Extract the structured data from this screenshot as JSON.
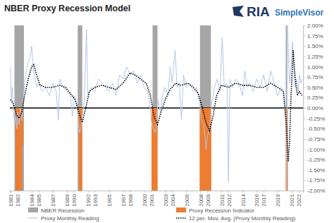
{
  "chart_data": {
    "type": "line",
    "title": "NBER Proxy Recession Model",
    "annotations": [
      "RIA",
      "SimpleVisor"
    ],
    "xlim": [
      1980.9,
      2022.6
    ],
    "xticks": [
      1981,
      1982,
      1984,
      1985,
      1987,
      1989,
      1990,
      1992,
      1993,
      1995,
      1997,
      1998,
      2000,
      2001,
      2003,
      2004,
      2006,
      2008,
      2009,
      2011,
      2012,
      2014,
      2016,
      2017,
      2019,
      2021,
      2022
    ],
    "ylim": [
      -2,
      2
    ],
    "yticks": [
      {
        "value": -2,
        "label": "-2.00%"
      },
      {
        "value": -1.75,
        "label": "-1.75%"
      },
      {
        "value": -1.5,
        "label": "-1.50%"
      },
      {
        "value": -1.25,
        "label": "-1.25%"
      },
      {
        "value": -1,
        "label": "-1.00%"
      },
      {
        "value": -0.75,
        "label": "-0.75%"
      },
      {
        "value": -0.5,
        "label": "-0.50%"
      },
      {
        "value": -0.25,
        "label": "-0.25%"
      },
      {
        "value": 0,
        "label": "0.00%"
      },
      {
        "value": 0.25,
        "label": "0.25%"
      },
      {
        "value": 0.5,
        "label": "0.50%"
      },
      {
        "value": 0.75,
        "label": "0.75%"
      },
      {
        "value": 1,
        "label": "1.00%"
      },
      {
        "value": 1.25,
        "label": "1.25%"
      },
      {
        "value": 1.5,
        "label": "1.50%"
      },
      {
        "value": 1.75,
        "label": "1.75%"
      },
      {
        "value": 2,
        "label": "2.00%"
      }
    ],
    "grid": false,
    "legend": "bottom",
    "series": [
      {
        "name": "NBER Recession",
        "type": "span",
        "color": "#a6a6a6",
        "start": [
          1981.55,
          1990.55,
          2001.2,
          2007.95,
          2020.15
        ],
        "end": [
          1982.9,
          1991.2,
          2001.9,
          2009.5,
          2020.35
        ]
      },
      {
        "name": "Proxy Recession Indicator",
        "type": "bar",
        "color": "#ed7d31",
        "x": [
          1981.85,
          1982.05,
          1982.2,
          1982.5,
          1982.65,
          1990.85,
          1991.05,
          2001.2,
          2001.4,
          2001.6,
          2001.75,
          2008.05,
          2008.3,
          2008.55,
          2008.75,
          2009.0,
          2009.2,
          2009.4,
          2020.3
        ],
        "values": [
          -2,
          -2,
          -2,
          -2,
          -0.9,
          -2,
          -2,
          -2,
          -2,
          -2,
          -2,
          -2,
          -2,
          -2,
          -2,
          -2,
          -2,
          -2,
          -2
        ]
      },
      {
        "name": "Proxy Monthly Reading",
        "type": "line",
        "color": "#b4c7e7",
        "line_style": "solid",
        "x": [
          1981.0,
          1981.1,
          1981.25,
          1981.4,
          1981.6,
          1981.75,
          1981.9,
          1982.0,
          1982.2,
          1982.4,
          1982.6,
          1982.8,
          1983.0,
          1983.25,
          1983.5,
          1983.75,
          1984.0,
          1984.25,
          1984.5,
          1984.75,
          1985.0,
          1985.5,
          1986.0,
          1986.5,
          1987.0,
          1987.5,
          1987.8,
          1988.0,
          1988.5,
          1989.0,
          1989.5,
          1989.8,
          1990.0,
          1990.4,
          1990.6,
          1990.8,
          1991.0,
          1991.2,
          1991.5,
          1991.8,
          1992.0,
          1992.5,
          1993.0,
          1993.5,
          1994.0,
          1994.5,
          1995.0,
          1995.5,
          1996.0,
          1996.5,
          1997.0,
          1997.5,
          1998.0,
          1998.5,
          1999.0,
          1999.5,
          2000.0,
          2000.5,
          2000.8,
          2001.0,
          2001.3,
          2001.6,
          2001.8,
          2002.0,
          2002.3,
          2002.6,
          2003.0,
          2003.4,
          2003.7,
          2004.0,
          2004.4,
          2004.7,
          2005.0,
          2005.3,
          2005.6,
          2006.0,
          2006.5,
          2007.0,
          2007.5,
          2007.9,
          2008.2,
          2008.5,
          2008.8,
          2009.0,
          2009.3,
          2009.6,
          2010.0,
          2010.4,
          2010.8,
          2011.1,
          2011.4,
          2011.8,
          2012.0,
          2012.2,
          2012.6,
          2013.0,
          2013.5,
          2014.0,
          2014.3,
          2014.7,
          2015.0,
          2015.5,
          2016.0,
          2016.5,
          2017.0,
          2017.5,
          2018.0,
          2018.5,
          2019.0,
          2019.5,
          2019.9,
          2020.1,
          2020.25,
          2020.4,
          2020.55,
          2020.7,
          2020.9,
          2021.1,
          2021.3,
          2021.5,
          2021.7,
          2021.9,
          2022.1,
          2022.3,
          2022.45
        ],
        "values": [
          1.0,
          0.2,
          0.5,
          -0.1,
          -0.4,
          -0.2,
          -0.5,
          -0.1,
          -0.4,
          0.0,
          -0.3,
          0.2,
          0.6,
          0.9,
          1.1,
          1.2,
          1.5,
          0.9,
          0.7,
          0.5,
          0.6,
          0.4,
          0.5,
          0.3,
          0.6,
          0.4,
          -0.3,
          0.7,
          0.5,
          0.4,
          0.3,
          -0.2,
          0.3,
          0.1,
          -0.3,
          -0.6,
          -0.5,
          -0.2,
          0.2,
          1.9,
          0.3,
          0.5,
          0.4,
          0.7,
          0.6,
          0.5,
          0.4,
          0.6,
          0.3,
          0.8,
          0.7,
          1.0,
          0.8,
          0.9,
          0.6,
          0.8,
          0.5,
          0.4,
          0.1,
          -0.3,
          -0.5,
          -0.6,
          -0.2,
          0.2,
          -0.1,
          0.3,
          0.5,
          0.3,
          1.0,
          0.6,
          1.4,
          0.5,
          0.6,
          -0.3,
          0.8,
          0.5,
          0.6,
          0.4,
          0.5,
          0.1,
          -0.3,
          -0.4,
          -1.0,
          -0.7,
          -0.5,
          0.1,
          0.5,
          0.7,
          0.4,
          1.7,
          0.5,
          0.6,
          -1.8,
          0.7,
          0.5,
          0.7,
          0.6,
          0.3,
          0.9,
          0.5,
          0.6,
          0.4,
          0.7,
          0.5,
          0.8,
          0.4,
          0.9,
          0.6,
          0.3,
          0.5,
          0.4,
          -0.3,
          -2.0,
          2.0,
          1.2,
          0.6,
          1.0,
          1.6,
          0.9,
          0.5,
          0.7,
          0.4,
          0.8,
          0.6,
          0.7
        ]
      },
      {
        "name": "12 per. Mov. Avg. (Proxy Monthly Reading)",
        "type": "line",
        "color": "#000000",
        "line_style": "dotted",
        "x": [
          1981.0,
          1981.4,
          1981.8,
          1982.2,
          1982.6,
          1983.0,
          1983.5,
          1984.0,
          1984.3,
          1984.7,
          1985.2,
          1986.0,
          1987.0,
          1988.0,
          1988.8,
          1989.5,
          1990.2,
          1990.7,
          1991.2,
          1991.7,
          1992.2,
          1993.0,
          1994.0,
          1995.0,
          1996.0,
          1997.0,
          1998.0,
          1998.7,
          1999.5,
          2000.3,
          2000.9,
          2001.4,
          2001.9,
          2002.4,
          2003.0,
          2003.7,
          2004.5,
          2005.3,
          2006.2,
          2007.0,
          2007.7,
          2008.3,
          2008.8,
          2009.3,
          2009.8,
          2010.3,
          2011.0,
          2012.0,
          2013.0,
          2014.0,
          2015.0,
          2016.0,
          2017.0,
          2018.0,
          2019.0,
          2019.8,
          2020.2,
          2020.5,
          2020.7,
          2020.9,
          2021.2,
          2021.5,
          2021.8,
          2022.1,
          2022.45
        ],
        "values": [
          0.2,
          0.1,
          -0.15,
          -0.25,
          -0.1,
          0.3,
          0.7,
          1.0,
          1.05,
          0.8,
          0.55,
          0.5,
          0.5,
          0.55,
          0.5,
          0.35,
          0.2,
          -0.1,
          -0.35,
          0.0,
          0.4,
          0.5,
          0.55,
          0.5,
          0.45,
          0.6,
          0.85,
          0.8,
          0.7,
          0.6,
          0.3,
          -0.2,
          -0.4,
          -0.1,
          0.2,
          0.45,
          0.6,
          0.55,
          0.6,
          0.5,
          0.35,
          0.0,
          -0.35,
          -0.55,
          -0.2,
          0.3,
          0.55,
          0.5,
          0.6,
          0.55,
          0.55,
          0.5,
          0.5,
          0.6,
          0.5,
          0.4,
          -0.3,
          -1.3,
          -0.8,
          0.3,
          1.4,
          0.7,
          0.3,
          0.4,
          0.3
        ]
      }
    ]
  }
}
